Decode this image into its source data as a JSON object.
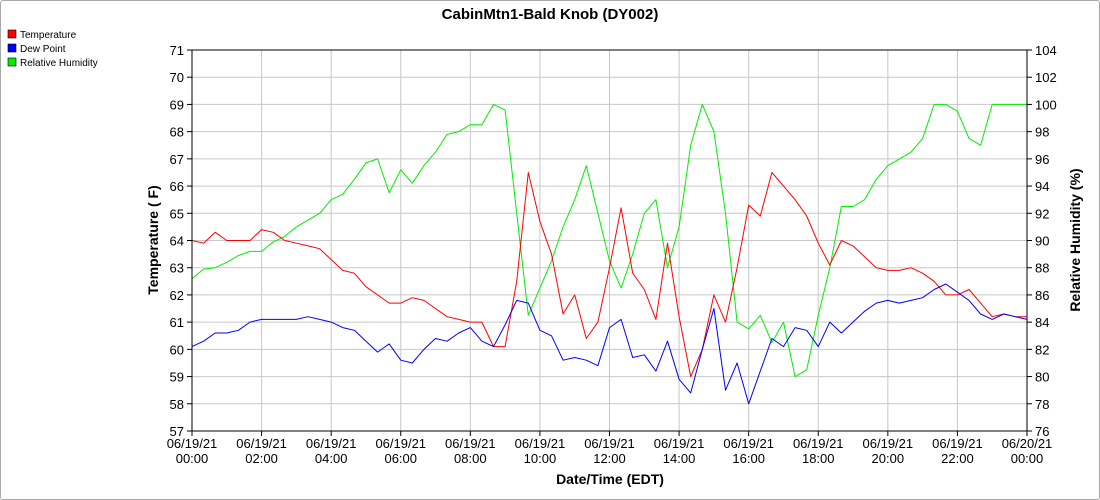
{
  "chart_data": {
    "type": "line",
    "title": "CabinMtn1-Bald Knob (DY002)",
    "xlabel": "Date/Time (EDT)",
    "ylabel": "Temperature ( F)",
    "y2label": "Relative Humidity (%)",
    "xlim": [
      "06/19/21 00:00",
      "06/20/21 00:00"
    ],
    "ylim": [
      57,
      71
    ],
    "y2lim": [
      76,
      104
    ],
    "grid": true,
    "legend_placement": "top-left",
    "x_tick_labels": [
      {
        "date": "06/19/21",
        "time": "00:00"
      },
      {
        "date": "06/19/21",
        "time": "02:00"
      },
      {
        "date": "06/19/21",
        "time": "04:00"
      },
      {
        "date": "06/19/21",
        "time": "06:00"
      },
      {
        "date": "06/19/21",
        "time": "08:00"
      },
      {
        "date": "06/19/21",
        "time": "10:00"
      },
      {
        "date": "06/19/21",
        "time": "12:00"
      },
      {
        "date": "06/19/21",
        "time": "14:00"
      },
      {
        "date": "06/19/21",
        "time": "16:00"
      },
      {
        "date": "06/19/21",
        "time": "18:00"
      },
      {
        "date": "06/19/21",
        "time": "20:00"
      },
      {
        "date": "06/19/21",
        "time": "22:00"
      },
      {
        "date": "06/20/21",
        "time": "00:00"
      }
    ],
    "y_ticks": [
      57,
      58,
      59,
      60,
      61,
      62,
      63,
      64,
      65,
      66,
      67,
      68,
      69,
      70,
      71
    ],
    "y2_ticks": [
      76,
      78,
      80,
      82,
      84,
      86,
      88,
      90,
      92,
      94,
      96,
      98,
      100,
      102,
      104
    ],
    "series": [
      {
        "name": "Temperature",
        "color": "#ff0000",
        "axis": "left",
        "points": [
          [
            "06/19/21 00:00",
            64.0
          ],
          [
            "06/19/21 00:20",
            63.9
          ],
          [
            "06/19/21 00:40",
            64.3
          ],
          [
            "06/19/21 01:00",
            64.0
          ],
          [
            "06/19/21 01:20",
            64.0
          ],
          [
            "06/19/21 01:40",
            64.0
          ],
          [
            "06/19/21 02:00",
            64.4
          ],
          [
            "06/19/21 02:20",
            64.3
          ],
          [
            "06/19/21 02:40",
            64.0
          ],
          [
            "06/19/21 03:00",
            63.9
          ],
          [
            "06/19/21 03:20",
            63.8
          ],
          [
            "06/19/21 03:40",
            63.7
          ],
          [
            "06/19/21 04:00",
            63.3
          ],
          [
            "06/19/21 04:20",
            62.9
          ],
          [
            "06/19/21 04:40",
            62.8
          ],
          [
            "06/19/21 05:00",
            62.3
          ],
          [
            "06/19/21 05:20",
            62.0
          ],
          [
            "06/19/21 05:40",
            61.7
          ],
          [
            "06/19/21 06:00",
            61.7
          ],
          [
            "06/19/21 06:20",
            61.9
          ],
          [
            "06/19/21 06:40",
            61.8
          ],
          [
            "06/19/21 07:00",
            61.5
          ],
          [
            "06/19/21 07:20",
            61.2
          ],
          [
            "06/19/21 07:40",
            61.1
          ],
          [
            "06/19/21 08:00",
            61.0
          ],
          [
            "06/19/21 08:20",
            61.0
          ],
          [
            "06/19/21 08:40",
            60.1
          ],
          [
            "06/19/21 09:00",
            60.1
          ],
          [
            "06/19/21 09:20",
            62.5
          ],
          [
            "06/19/21 09:40",
            66.5
          ],
          [
            "06/19/21 10:00",
            64.7
          ],
          [
            "06/19/21 10:20",
            63.5
          ],
          [
            "06/19/21 10:40",
            61.3
          ],
          [
            "06/19/21 11:00",
            62.0
          ],
          [
            "06/19/21 11:20",
            60.4
          ],
          [
            "06/19/21 11:40",
            61.0
          ],
          [
            "06/19/21 12:00",
            63.0
          ],
          [
            "06/19/21 12:20",
            65.2
          ],
          [
            "06/19/21 12:40",
            62.8
          ],
          [
            "06/19/21 13:00",
            62.2
          ],
          [
            "06/19/21 13:20",
            61.1
          ],
          [
            "06/19/21 13:40",
            63.9
          ],
          [
            "06/19/21 14:00",
            61.2
          ],
          [
            "06/19/21 14:20",
            59.0
          ],
          [
            "06/19/21 14:40",
            60.0
          ],
          [
            "06/19/21 15:00",
            62.0
          ],
          [
            "06/19/21 15:20",
            61.0
          ],
          [
            "06/19/21 15:40",
            63.0
          ],
          [
            "06/19/21 16:00",
            65.3
          ],
          [
            "06/19/21 16:20",
            64.9
          ],
          [
            "06/19/21 16:40",
            66.5
          ],
          [
            "06/19/21 17:00",
            66.0
          ],
          [
            "06/19/21 17:20",
            65.5
          ],
          [
            "06/19/21 17:40",
            64.9
          ],
          [
            "06/19/21 18:00",
            63.9
          ],
          [
            "06/19/21 18:20",
            63.1
          ],
          [
            "06/19/21 18:40",
            64.0
          ],
          [
            "06/19/21 19:00",
            63.8
          ],
          [
            "06/19/21 19:20",
            63.4
          ],
          [
            "06/19/21 19:40",
            63.0
          ],
          [
            "06/19/21 20:00",
            62.9
          ],
          [
            "06/19/21 20:20",
            62.9
          ],
          [
            "06/19/21 20:40",
            63.0
          ],
          [
            "06/19/21 21:00",
            62.8
          ],
          [
            "06/19/21 21:20",
            62.5
          ],
          [
            "06/19/21 21:40",
            62.0
          ],
          [
            "06/19/21 22:00",
            62.0
          ],
          [
            "06/19/21 22:20",
            62.2
          ],
          [
            "06/19/21 22:40",
            61.7
          ],
          [
            "06/19/21 23:00",
            61.2
          ],
          [
            "06/19/21 23:20",
            61.3
          ],
          [
            "06/19/21 23:40",
            61.2
          ],
          [
            "06/20/21 00:00",
            61.2
          ]
        ]
      },
      {
        "name": "Dew Point",
        "color": "#0000ff",
        "axis": "left",
        "points": [
          [
            "06/19/21 00:00",
            60.1
          ],
          [
            "06/19/21 00:20",
            60.3
          ],
          [
            "06/19/21 00:40",
            60.6
          ],
          [
            "06/19/21 01:00",
            60.6
          ],
          [
            "06/19/21 01:20",
            60.7
          ],
          [
            "06/19/21 01:40",
            61.0
          ],
          [
            "06/19/21 02:00",
            61.1
          ],
          [
            "06/19/21 02:20",
            61.1
          ],
          [
            "06/19/21 02:40",
            61.1
          ],
          [
            "06/19/21 03:00",
            61.1
          ],
          [
            "06/19/21 03:20",
            61.2
          ],
          [
            "06/19/21 03:40",
            61.1
          ],
          [
            "06/19/21 04:00",
            61.0
          ],
          [
            "06/19/21 04:20",
            60.8
          ],
          [
            "06/19/21 04:40",
            60.7
          ],
          [
            "06/19/21 05:00",
            60.3
          ],
          [
            "06/19/21 05:20",
            59.9
          ],
          [
            "06/19/21 05:40",
            60.2
          ],
          [
            "06/19/21 06:00",
            59.6
          ],
          [
            "06/19/21 06:20",
            59.5
          ],
          [
            "06/19/21 06:40",
            60.0
          ],
          [
            "06/19/21 07:00",
            60.4
          ],
          [
            "06/19/21 07:20",
            60.3
          ],
          [
            "06/19/21 07:40",
            60.6
          ],
          [
            "06/19/21 08:00",
            60.8
          ],
          [
            "06/19/21 08:20",
            60.3
          ],
          [
            "06/19/21 08:40",
            60.1
          ],
          [
            "06/19/21 09:00",
            60.9
          ],
          [
            "06/19/21 09:20",
            61.8
          ],
          [
            "06/19/21 09:40",
            61.7
          ],
          [
            "06/19/21 10:00",
            60.7
          ],
          [
            "06/19/21 10:20",
            60.5
          ],
          [
            "06/19/21 10:40",
            59.6
          ],
          [
            "06/19/21 11:00",
            59.7
          ],
          [
            "06/19/21 11:20",
            59.6
          ],
          [
            "06/19/21 11:40",
            59.4
          ],
          [
            "06/19/21 12:00",
            60.8
          ],
          [
            "06/19/21 12:20",
            61.1
          ],
          [
            "06/19/21 12:40",
            59.7
          ],
          [
            "06/19/21 13:00",
            59.8
          ],
          [
            "06/19/21 13:20",
            59.2
          ],
          [
            "06/19/21 13:40",
            60.3
          ],
          [
            "06/19/21 14:00",
            58.9
          ],
          [
            "06/19/21 14:20",
            58.4
          ],
          [
            "06/19/21 14:40",
            60.0
          ],
          [
            "06/19/21 15:00",
            61.5
          ],
          [
            "06/19/21 15:20",
            58.5
          ],
          [
            "06/19/21 15:40",
            59.5
          ],
          [
            "06/19/21 16:00",
            58.0
          ],
          [
            "06/19/21 16:20",
            59.2
          ],
          [
            "06/19/21 16:40",
            60.4
          ],
          [
            "06/19/21 17:00",
            60.1
          ],
          [
            "06/19/21 17:20",
            60.8
          ],
          [
            "06/19/21 17:40",
            60.7
          ],
          [
            "06/19/21 18:00",
            60.1
          ],
          [
            "06/19/21 18:20",
            61.0
          ],
          [
            "06/19/21 18:40",
            60.6
          ],
          [
            "06/19/21 19:00",
            61.0
          ],
          [
            "06/19/21 19:20",
            61.4
          ],
          [
            "06/19/21 19:40",
            61.7
          ],
          [
            "06/19/21 20:00",
            61.8
          ],
          [
            "06/19/21 20:20",
            61.7
          ],
          [
            "06/19/21 20:40",
            61.8
          ],
          [
            "06/19/21 21:00",
            61.9
          ],
          [
            "06/19/21 21:20",
            62.2
          ],
          [
            "06/19/21 21:40",
            62.4
          ],
          [
            "06/19/21 22:00",
            62.1
          ],
          [
            "06/19/21 22:20",
            61.8
          ],
          [
            "06/19/21 22:40",
            61.3
          ],
          [
            "06/19/21 23:00",
            61.1
          ],
          [
            "06/19/21 23:20",
            61.3
          ],
          [
            "06/19/21 23:40",
            61.2
          ],
          [
            "06/20/21 00:00",
            61.1
          ]
        ]
      },
      {
        "name": "Relative Humidity",
        "color": "#00ee00",
        "axis": "right",
        "points": [
          [
            "06/19/21 00:00",
            87.2
          ],
          [
            "06/19/21 00:20",
            87.9
          ],
          [
            "06/19/21 00:40",
            88.0
          ],
          [
            "06/19/21 01:00",
            88.4
          ],
          [
            "06/19/21 01:20",
            88.9
          ],
          [
            "06/19/21 01:40",
            89.2
          ],
          [
            "06/19/21 02:00",
            89.2
          ],
          [
            "06/19/21 02:20",
            89.9
          ],
          [
            "06/19/21 02:40",
            90.3
          ],
          [
            "06/19/21 03:00",
            91.0
          ],
          [
            "06/19/21 03:20",
            91.5
          ],
          [
            "06/19/21 03:40",
            92.0
          ],
          [
            "06/19/21 04:00",
            93.0
          ],
          [
            "06/19/21 04:20",
            93.4
          ],
          [
            "06/19/21 04:40",
            94.5
          ],
          [
            "06/19/21 05:00",
            95.7
          ],
          [
            "06/19/21 05:20",
            96.0
          ],
          [
            "06/19/21 05:40",
            93.5
          ],
          [
            "06/19/21 06:00",
            95.2
          ],
          [
            "06/19/21 06:20",
            94.2
          ],
          [
            "06/19/21 06:40",
            95.5
          ],
          [
            "06/19/21 07:00",
            96.5
          ],
          [
            "06/19/21 07:20",
            97.8
          ],
          [
            "06/19/21 07:40",
            98.0
          ],
          [
            "06/19/21 08:00",
            98.5
          ],
          [
            "06/19/21 08:20",
            98.5
          ],
          [
            "06/19/21 08:40",
            100.0
          ],
          [
            "06/19/21 09:00",
            99.6
          ],
          [
            "06/19/21 09:20",
            92.0
          ],
          [
            "06/19/21 09:40",
            84.5
          ],
          [
            "06/19/21 10:00",
            86.5
          ],
          [
            "06/19/21 10:20",
            88.5
          ],
          [
            "06/19/21 10:40",
            91.0
          ],
          [
            "06/19/21 11:00",
            93.0
          ],
          [
            "06/19/21 11:20",
            95.5
          ],
          [
            "06/19/21 11:40",
            92.0
          ],
          [
            "06/19/21 12:00",
            88.5
          ],
          [
            "06/19/21 12:20",
            86.5
          ],
          [
            "06/19/21 12:40",
            89.0
          ],
          [
            "06/19/21 13:00",
            92.0
          ],
          [
            "06/19/21 13:20",
            93.0
          ],
          [
            "06/19/21 13:40",
            88.0
          ],
          [
            "06/19/21 14:00",
            91.0
          ],
          [
            "06/19/21 14:20",
            97.0
          ],
          [
            "06/19/21 14:40",
            100.0
          ],
          [
            "06/19/21 15:00",
            98.0
          ],
          [
            "06/19/21 15:20",
            92.0
          ],
          [
            "06/19/21 15:40",
            84.0
          ],
          [
            "06/19/21 16:00",
            83.5
          ],
          [
            "06/19/21 16:20",
            84.5
          ],
          [
            "06/19/21 16:40",
            82.5
          ],
          [
            "06/19/21 17:00",
            84.0
          ],
          [
            "06/19/21 17:20",
            80.0
          ],
          [
            "06/19/21 17:40",
            80.5
          ],
          [
            "06/19/21 18:00",
            84.5
          ],
          [
            "06/19/21 18:20",
            88.0
          ],
          [
            "06/19/21 18:40",
            92.5
          ],
          [
            "06/19/21 19:00",
            92.5
          ],
          [
            "06/19/21 19:20",
            93.0
          ],
          [
            "06/19/21 19:40",
            94.5
          ],
          [
            "06/19/21 20:00",
            95.5
          ],
          [
            "06/19/21 20:20",
            96.0
          ],
          [
            "06/19/21 20:40",
            96.5
          ],
          [
            "06/19/21 21:00",
            97.5
          ],
          [
            "06/19/21 21:20",
            100.0
          ],
          [
            "06/19/21 21:40",
            100.0
          ],
          [
            "06/19/21 22:00",
            99.5
          ],
          [
            "06/19/21 22:20",
            97.5
          ],
          [
            "06/19/21 22:40",
            97.0
          ],
          [
            "06/19/21 23:00",
            100.0
          ],
          [
            "06/19/21 23:20",
            100.0
          ],
          [
            "06/19/21 23:40",
            100.0
          ],
          [
            "06/20/21 00:00",
            100.0
          ]
        ]
      }
    ]
  }
}
